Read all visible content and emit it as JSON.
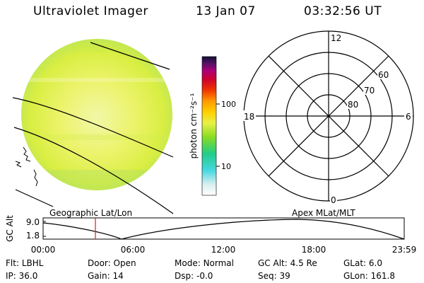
{
  "header": {
    "title": "Ultraviolet Imager",
    "date": "13 Jan 07",
    "time": "03:32:56 UT"
  },
  "colorbar": {
    "unit_label": "photon cm⁻²s⁻¹",
    "ticks": [
      "100",
      "10"
    ]
  },
  "image_panel": {
    "caption": "Geographic Lat/Lon"
  },
  "polar_plot": {
    "caption": "Apex MLat/MLT",
    "mlt_labels": {
      "top": "12",
      "left": "18",
      "right": "6",
      "bottom": "0"
    },
    "lat_labels": [
      "60",
      "70",
      "80"
    ]
  },
  "altitude_plot": {
    "ylabel": "GC Alt",
    "y_ticks": [
      "9.0",
      "1.8"
    ],
    "x_ticks": [
      "00:00",
      "06:00",
      "12:00",
      "18:00",
      "23:59"
    ]
  },
  "footer": {
    "row1": [
      {
        "key": "Flt:",
        "value": "LBHL"
      },
      {
        "key": "Door:",
        "value": "Open"
      },
      {
        "key": "Mode:",
        "value": "Normal"
      },
      {
        "key": "GC Alt:",
        "value": "4.5 Re"
      },
      {
        "key": "GLat:",
        "value": "6.0"
      }
    ],
    "row2": [
      {
        "key": "IP:",
        "value": "36.0"
      },
      {
        "key": "Gain:",
        "value": "14"
      },
      {
        "key": "Dsp:",
        "value": "-0.0"
      },
      {
        "key": "Seq:",
        "value": "39"
      },
      {
        "key": "GLon:",
        "value": "161.8"
      }
    ]
  },
  "colors": {
    "image_base": "#e8f046",
    "line": "#000000",
    "marker": "#cc2222"
  }
}
